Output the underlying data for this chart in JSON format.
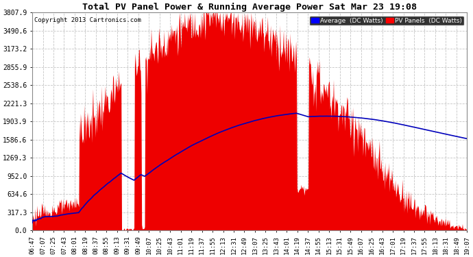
{
  "title": "Total PV Panel Power & Running Average Power Sat Mar 23 19:08",
  "copyright": "Copyright 2013 Cartronics.com",
  "legend_avg": "Average  (DC Watts)",
  "legend_pv": "PV Panels  (DC Watts)",
  "y_ticks": [
    0.0,
    317.3,
    634.6,
    952.0,
    1269.3,
    1586.6,
    1903.9,
    2221.3,
    2538.6,
    2855.9,
    3173.2,
    3490.6,
    3807.9
  ],
  "y_max": 3807.9,
  "background_color": "#ffffff",
  "plot_bg_color": "#ffffff",
  "grid_color": "#aaaaaa",
  "bar_color": "#ee0000",
  "line_color": "#0000bb",
  "x_labels": [
    "06:47",
    "07:07",
    "07:25",
    "07:43",
    "08:01",
    "08:19",
    "08:37",
    "08:55",
    "09:13",
    "09:31",
    "09:49",
    "10:07",
    "10:25",
    "10:43",
    "11:01",
    "11:19",
    "11:37",
    "11:55",
    "12:13",
    "12:31",
    "12:49",
    "13:07",
    "13:25",
    "13:43",
    "14:01",
    "14:19",
    "14:37",
    "14:55",
    "15:13",
    "15:31",
    "15:49",
    "16:07",
    "16:25",
    "16:43",
    "17:01",
    "17:19",
    "17:37",
    "17:55",
    "18:13",
    "18:31",
    "18:49",
    "19:07"
  ]
}
